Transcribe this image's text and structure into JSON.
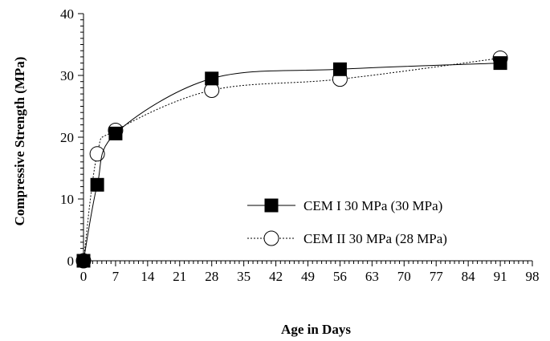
{
  "chart_data": {
    "type": "scatter",
    "title": "",
    "xlabel": "Age in Days",
    "ylabel": "Compressive Strength (MPa)",
    "xlim": [
      0,
      98
    ],
    "ylim": [
      0,
      40
    ],
    "x_ticks": [
      0,
      7,
      14,
      21,
      28,
      35,
      42,
      49,
      56,
      63,
      70,
      77,
      84,
      91,
      98
    ],
    "y_ticks": [
      0,
      10,
      20,
      30,
      40
    ],
    "grid": false,
    "legend_position": "bottom-right",
    "smooth_lines": true,
    "series": [
      {
        "name": "CEM I 30 MPa (30 MPa)",
        "marker": "filled-square",
        "line": "solid",
        "color": "#000000",
        "x": [
          0,
          3,
          7,
          28,
          56,
          91
        ],
        "y": [
          0,
          12.3,
          20.6,
          29.5,
          31.0,
          32.0
        ]
      },
      {
        "name": "CEM II 30 MPa (28 MPa)",
        "marker": "open-circle",
        "line": "dotted",
        "color": "#000000",
        "x": [
          0,
          3,
          7,
          28,
          56,
          91
        ],
        "y": [
          0,
          17.3,
          21.1,
          27.6,
          29.4,
          32.8
        ]
      }
    ]
  }
}
